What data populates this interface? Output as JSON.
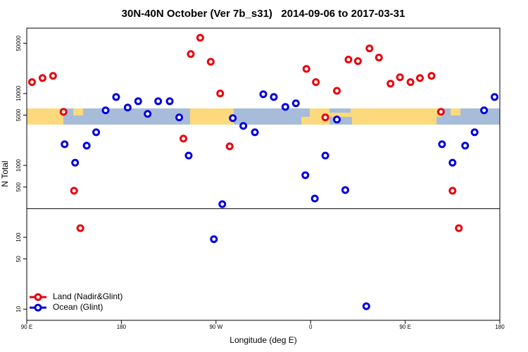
{
  "chart_data": {
    "type": "scatter",
    "title": "30N-40N October (Ver 7b_s31)   2014-09-06 to 2017-03-31",
    "x_label": "Longitude (deg E)",
    "y_label": "N Total",
    "xlim": [
      90,
      540
    ],
    "xticks": [
      {
        "value": 90,
        "label": "90 E"
      },
      {
        "value": 180,
        "label": "180"
      },
      {
        "value": 270,
        "label": "90 W"
      },
      {
        "value": 360,
        "label": "0"
      },
      {
        "value": 450,
        "label": "90 E"
      },
      {
        "value": 540,
        "label": "180"
      }
    ],
    "ylim": [
      7,
      81000
    ],
    "log_y": true,
    "yticks": [
      10,
      50,
      100,
      500,
      1000,
      5000,
      10000,
      50000
    ],
    "hline": 250,
    "legend": "bottom-left",
    "series": [
      {
        "name": "Land (Nadir&Glint)",
        "color": "#e8000b",
        "x": [
          95,
          105,
          115,
          125,
          135,
          141,
          239,
          246,
          255,
          265,
          274,
          283,
          356,
          365,
          374,
          385,
          396,
          405,
          416,
          425,
          436,
          445,
          455,
          464,
          475,
          484,
          495,
          501
        ],
        "values": [
          14400,
          16400,
          17600,
          5560,
          444,
          134,
          2360,
          35400,
          59600,
          27600,
          10000,
          1840,
          22000,
          14400,
          4650,
          10900,
          29600,
          28200,
          42400,
          31600,
          13700,
          16800,
          14400,
          16400,
          17600,
          5560,
          444,
          134
        ]
      },
      {
        "name": "Ocean (Glint)",
        "color": "#0000dd",
        "x": [
          126,
          136,
          147,
          156,
          165,
          175,
          186,
          196,
          205,
          215,
          226,
          235,
          244,
          268,
          276,
          286,
          296,
          307,
          315,
          325,
          336,
          346,
          355,
          364,
          374,
          385,
          393,
          413,
          485,
          495,
          507,
          516,
          525,
          535
        ],
        "values": [
          1970,
          1090,
          1880,
          2890,
          5820,
          8930,
          6370,
          7800,
          5200,
          7800,
          7800,
          4650,
          1370,
          94,
          289,
          4540,
          3540,
          2890,
          9770,
          8930,
          6510,
          7300,
          730,
          346,
          1370,
          4340,
          454,
          11,
          1970,
          1090,
          1880,
          2890,
          5820,
          8930
        ]
      }
    ]
  }
}
